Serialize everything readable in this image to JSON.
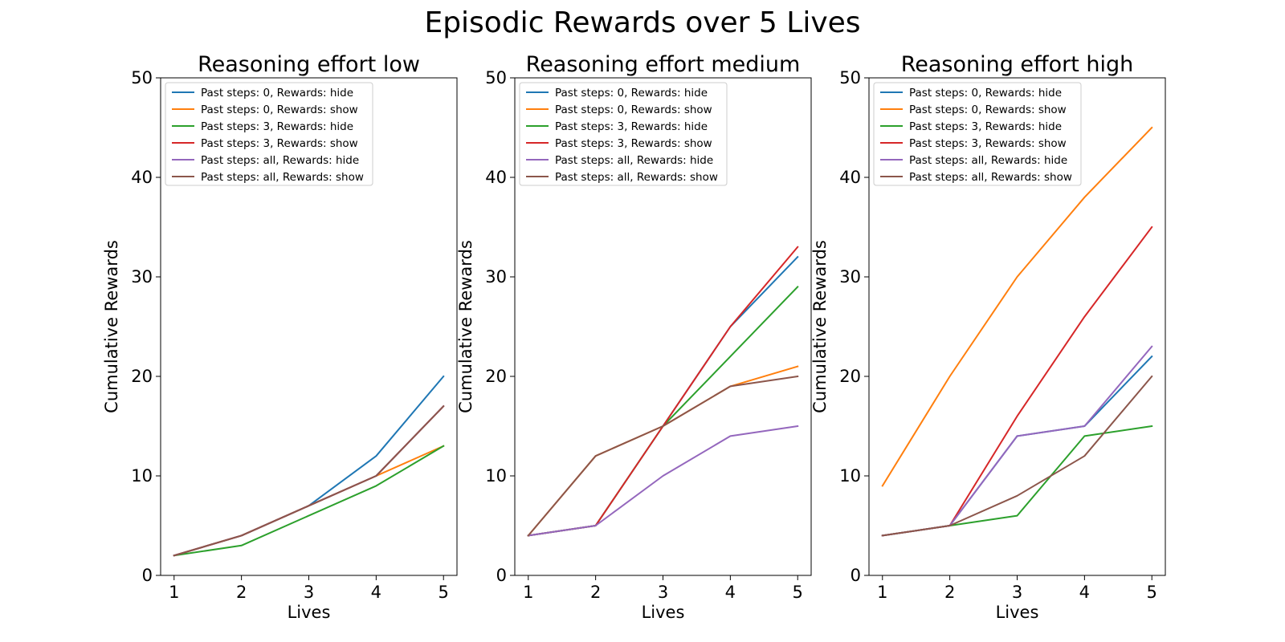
{
  "figure": {
    "title": "Episodic Rewards over 5 Lives"
  },
  "chart_data": [
    {
      "type": "line",
      "title": "Reasoning effort low",
      "xlabel": "Lives",
      "ylabel": "Cumulative Rewards",
      "x": [
        1,
        2,
        3,
        4,
        5
      ],
      "xticks": [
        "1",
        "2",
        "3",
        "4",
        "5"
      ],
      "yticks": [
        "0",
        "10",
        "20",
        "30",
        "40",
        "50"
      ],
      "xlim": [
        0.8,
        5.2
      ],
      "ylim": [
        0,
        50
      ],
      "grid": false,
      "legend_position": "top-left",
      "series": [
        {
          "name": "Past steps: 0, Rewards: hide",
          "color": "#1f77b4",
          "values": [
            2,
            4,
            7,
            12,
            20
          ]
        },
        {
          "name": "Past steps: 0, Rewards: show",
          "color": "#ff7f0e",
          "values": [
            2,
            4,
            7,
            10,
            13
          ]
        },
        {
          "name": "Past steps: 3, Rewards: hide",
          "color": "#2ca02c",
          "values": [
            2,
            3,
            6,
            9,
            13
          ]
        },
        {
          "name": "Past steps: 3, Rewards: show",
          "color": "#d62728",
          "values": [
            2,
            4,
            7,
            10,
            17
          ]
        },
        {
          "name": "Past steps: all, Rewards: hide",
          "color": "#9467bd",
          "values": [
            2,
            4,
            7,
            10,
            17
          ]
        },
        {
          "name": "Past steps: all, Rewards: show",
          "color": "#8c564b",
          "values": [
            2,
            4,
            7,
            10,
            17
          ]
        }
      ]
    },
    {
      "type": "line",
      "title": "Reasoning effort medium",
      "xlabel": "Lives",
      "ylabel": "Cumulative Rewards",
      "x": [
        1,
        2,
        3,
        4,
        5
      ],
      "xticks": [
        "1",
        "2",
        "3",
        "4",
        "5"
      ],
      "yticks": [
        "0",
        "10",
        "20",
        "30",
        "40",
        "50"
      ],
      "xlim": [
        0.8,
        5.2
      ],
      "ylim": [
        0,
        50
      ],
      "grid": false,
      "legend_position": "top-left",
      "series": [
        {
          "name": "Past steps: 0, Rewards: hide",
          "color": "#1f77b4",
          "values": [
            4,
            5,
            15,
            25,
            32
          ]
        },
        {
          "name": "Past steps: 0, Rewards: show",
          "color": "#ff7f0e",
          "values": [
            4,
            12,
            15,
            19,
            21
          ]
        },
        {
          "name": "Past steps: 3, Rewards: hide",
          "color": "#2ca02c",
          "values": [
            4,
            5,
            15,
            22,
            29
          ]
        },
        {
          "name": "Past steps: 3, Rewards: show",
          "color": "#d62728",
          "values": [
            4,
            5,
            15,
            25,
            33
          ]
        },
        {
          "name": "Past steps: all, Rewards: hide",
          "color": "#9467bd",
          "values": [
            4,
            5,
            10,
            14,
            15
          ]
        },
        {
          "name": "Past steps: all, Rewards: show",
          "color": "#8c564b",
          "values": [
            4,
            12,
            15,
            19,
            20
          ]
        }
      ]
    },
    {
      "type": "line",
      "title": "Reasoning effort high",
      "xlabel": "Lives",
      "ylabel": "Cumulative Rewards",
      "x": [
        1,
        2,
        3,
        4,
        5
      ],
      "xticks": [
        "1",
        "2",
        "3",
        "4",
        "5"
      ],
      "yticks": [
        "0",
        "10",
        "20",
        "30",
        "40",
        "50"
      ],
      "xlim": [
        0.8,
        5.2
      ],
      "ylim": [
        0,
        50
      ],
      "grid": false,
      "legend_position": "top-left",
      "series": [
        {
          "name": "Past steps: 0, Rewards: hide",
          "color": "#1f77b4",
          "values": [
            4,
            5,
            14,
            15,
            22
          ]
        },
        {
          "name": "Past steps: 0, Rewards: show",
          "color": "#ff7f0e",
          "values": [
            9,
            20,
            30,
            38,
            45
          ]
        },
        {
          "name": "Past steps: 3, Rewards: hide",
          "color": "#2ca02c",
          "values": [
            4,
            5,
            6,
            14,
            15
          ]
        },
        {
          "name": "Past steps: 3, Rewards: show",
          "color": "#d62728",
          "values": [
            4,
            5,
            16,
            26,
            35
          ]
        },
        {
          "name": "Past steps: all, Rewards: hide",
          "color": "#9467bd",
          "values": [
            4,
            5,
            14,
            15,
            23
          ]
        },
        {
          "name": "Past steps: all, Rewards: show",
          "color": "#8c564b",
          "values": [
            4,
            5,
            8,
            12,
            20
          ]
        }
      ]
    }
  ]
}
